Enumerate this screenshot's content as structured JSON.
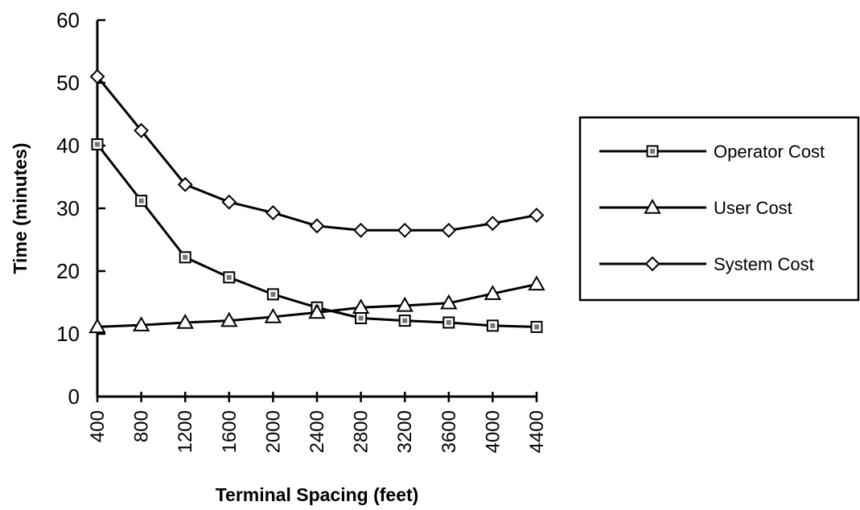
{
  "chart_data": {
    "type": "line",
    "title": "",
    "xlabel": "Terminal Spacing (feet)",
    "ylabel": "Time (minutes)",
    "x": [
      400,
      800,
      1200,
      1600,
      2000,
      2400,
      2800,
      3200,
      3600,
      4000,
      4400
    ],
    "xtick_labels": [
      "400",
      "800",
      "1200",
      "1600",
      "2000",
      "2400",
      "2800",
      "3200",
      "3600",
      "4000",
      "4400"
    ],
    "yticks": [
      0,
      10,
      20,
      30,
      40,
      50,
      60
    ],
    "ytick_labels": [
      "0",
      "10",
      "20",
      "30",
      "40",
      "50",
      "60"
    ],
    "ylim": [
      0,
      60
    ],
    "grid": false,
    "legend_position": "right",
    "series": [
      {
        "name": "Operator Cost",
        "marker": "square",
        "values": [
          40.2,
          31.2,
          22.2,
          19.0,
          16.3,
          14.2,
          12.5,
          12.1,
          11.8,
          11.3,
          11.1
        ]
      },
      {
        "name": "User Cost",
        "marker": "triangle",
        "values": [
          11.1,
          11.4,
          11.8,
          12.1,
          12.7,
          13.4,
          14.2,
          14.5,
          14.9,
          16.4,
          17.9
        ]
      },
      {
        "name": "System Cost",
        "marker": "diamond",
        "values": [
          51.0,
          42.4,
          33.8,
          31.0,
          29.3,
          27.2,
          26.5,
          26.5,
          26.5,
          27.6,
          28.9
        ]
      }
    ]
  }
}
